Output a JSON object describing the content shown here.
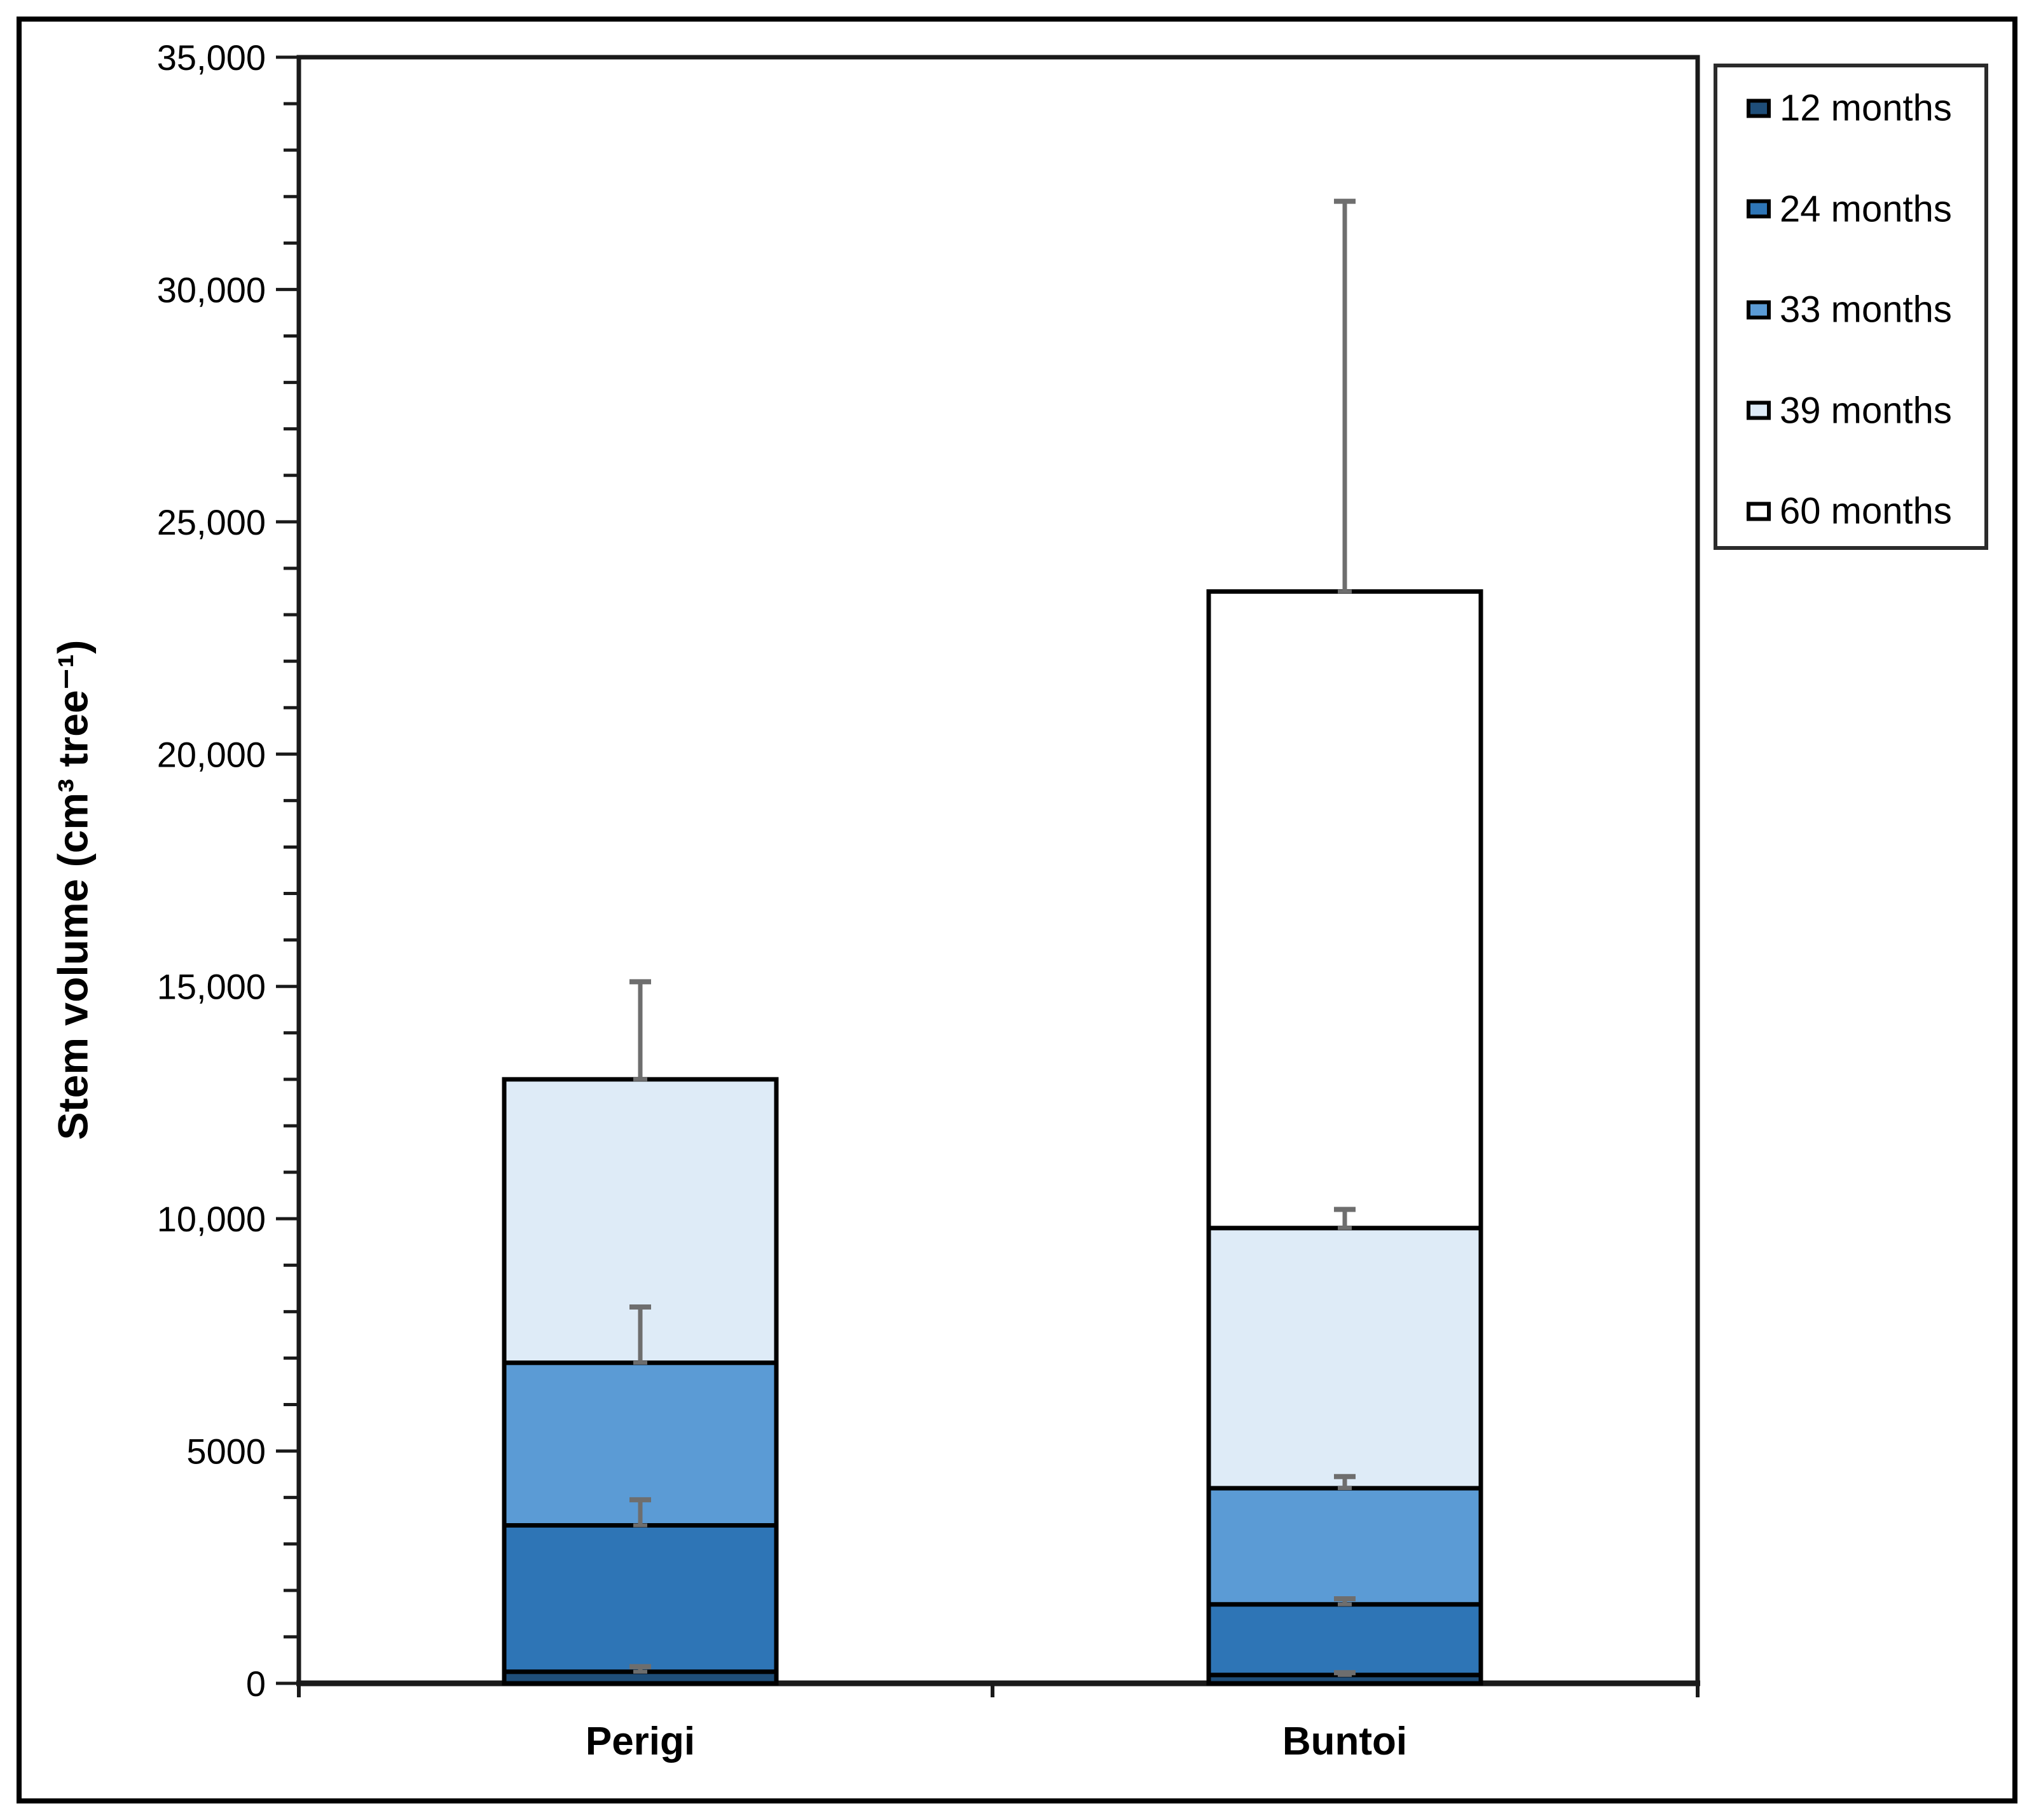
{
  "figure": {
    "kind": "stacked bar chart with error bars",
    "background": "#ffffff",
    "frame_color": "#000000"
  },
  "axes": {
    "y_title": "Stem volume (cm³ tree⁻¹)",
    "y_min": 0,
    "y_max": 35000,
    "y_major_step": 5000,
    "y_minor_step": 1000,
    "y_tick_labels": [
      "0",
      "5000",
      "10,000",
      "15,000",
      "20,000",
      "25,000",
      "30,000",
      "35,000"
    ],
    "x_category_labels": [
      "Perigi",
      "Buntoi"
    ]
  },
  "legend": {
    "position": "top-right",
    "labels": [
      "12 months",
      "24 months",
      "33 months",
      "39 months",
      "60 months"
    ]
  },
  "colors": {
    "months12": "#1F4E79",
    "months24": "#2E75B6",
    "months33": "#5B9BD5",
    "months39": "#DEEBF7",
    "months60": "#FFFFFF",
    "error_bar": "#6e6e6e",
    "axis": "#1a1a1a"
  },
  "chart_data": {
    "type": "bar",
    "subtype": "stacked-vertical",
    "title": "",
    "xlabel": "",
    "ylabel": "Stem volume (cm³ tree⁻¹)",
    "ylim": [
      0,
      35000
    ],
    "grid": false,
    "legend_position": "top-right",
    "categories": [
      "Perigi",
      "Buntoi"
    ],
    "series": [
      {
        "name": "12 months",
        "color": "#1F4E79",
        "values": [
          250,
          180
        ],
        "cumulative": [
          250,
          180
        ],
        "error_bar_top": [
          360,
          230
        ]
      },
      {
        "name": "24 months",
        "color": "#2E75B6",
        "values": [
          3150,
          1520
        ],
        "cumulative": [
          3400,
          1700
        ],
        "error_bar_top": [
          3950,
          1820
        ]
      },
      {
        "name": "33 months",
        "color": "#5B9BD5",
        "values": [
          3500,
          2500
        ],
        "cumulative": [
          6900,
          4200
        ],
        "error_bar_top": [
          8100,
          4450
        ]
      },
      {
        "name": "39 months",
        "color": "#DEEBF7",
        "values": [
          6100,
          5600
        ],
        "cumulative": [
          13000,
          9800
        ],
        "error_bar_top": [
          15100,
          10200
        ]
      },
      {
        "name": "60 months",
        "color": "#FFFFFF",
        "values": [
          0,
          13700
        ],
        "cumulative": [
          13000,
          23500
        ],
        "error_bar_top": [
          null,
          31900
        ]
      }
    ]
  }
}
